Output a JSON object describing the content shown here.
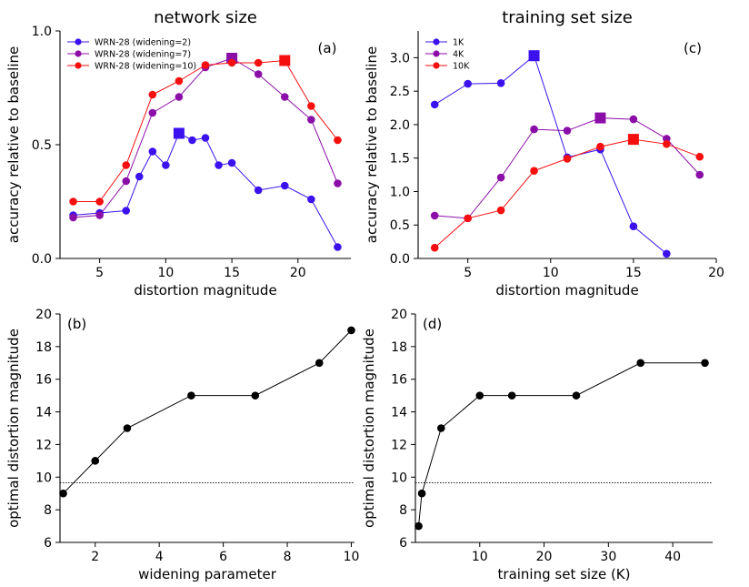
{
  "chart_data": [
    {
      "id": "a",
      "type": "line",
      "title": "network size",
      "panel_label": "(a)",
      "xlabel": "distortion magnitude",
      "ylabel": "accuracy relative to baseline",
      "xlim": [
        2,
        24
      ],
      "ylim": [
        0,
        1.0
      ],
      "xticks": [
        5,
        10,
        15,
        20
      ],
      "yticks": [
        0.0,
        0.5,
        1.0
      ],
      "ytick_labels": [
        "0.0",
        "0.5",
        "1.0"
      ],
      "legend_position": "top-left",
      "series": [
        {
          "name": "WRN-28 (widening=2)",
          "color": "#3b12ee",
          "x": [
            3,
            5,
            7,
            8,
            9,
            10,
            11,
            12,
            13,
            14,
            15,
            17,
            19,
            21,
            23
          ],
          "y": [
            0.19,
            0.2,
            0.21,
            0.36,
            0.47,
            0.41,
            0.55,
            0.52,
            0.53,
            0.41,
            0.42,
            0.3,
            0.32,
            0.26,
            0.05
          ],
          "peak_x": 11
        },
        {
          "name": "WRN-28 (widening=7)",
          "color": "#8c0ea8",
          "x": [
            3,
            5,
            7,
            9,
            11,
            13,
            15,
            17,
            19,
            21,
            23
          ],
          "y": [
            0.18,
            0.19,
            0.34,
            0.64,
            0.71,
            0.84,
            0.88,
            0.81,
            0.71,
            0.61,
            0.33
          ],
          "peak_x": 15
        },
        {
          "name": "WRN-28 (widening=10)",
          "color": "#f50f0f",
          "x": [
            3,
            5,
            7,
            9,
            11,
            13,
            15,
            17,
            19,
            21,
            23
          ],
          "y": [
            0.25,
            0.25,
            0.41,
            0.72,
            0.78,
            0.85,
            0.86,
            0.86,
            0.87,
            0.67,
            0.52
          ],
          "peak_x": 19
        }
      ]
    },
    {
      "id": "b",
      "type": "line",
      "panel_label": "(b)",
      "xlabel": "widening parameter",
      "ylabel": "optimal distortion magnitude",
      "xlim": [
        0.9,
        10.1
      ],
      "ylim": [
        6,
        20
      ],
      "xticks": [
        2,
        4,
        6,
        8,
        10
      ],
      "yticks": [
        6,
        8,
        10,
        12,
        14,
        16,
        18,
        20
      ],
      "hline": 9.65,
      "series": [
        {
          "color": "#000000",
          "x": [
            1,
            2,
            3,
            5,
            7,
            9,
            10
          ],
          "y": [
            9,
            11,
            13,
            15,
            15,
            17,
            19
          ]
        }
      ]
    },
    {
      "id": "c",
      "type": "line",
      "title": "training set size",
      "panel_label": "(c)",
      "xlabel": "distortion magnitude",
      "ylabel": "accuracy relative to baseline",
      "xlim": [
        2,
        20
      ],
      "ylim": [
        0,
        3.4
      ],
      "xticks": [
        5,
        10,
        15,
        20
      ],
      "yticks": [
        0.0,
        0.5,
        1.0,
        1.5,
        2.0,
        2.5,
        3.0
      ],
      "ytick_labels": [
        "0.0",
        "0.5",
        "1.0",
        "1.5",
        "2.0",
        "2.5",
        "3.0"
      ],
      "legend_position": "top-left",
      "series": [
        {
          "name": "1K",
          "color": "#3b12ee",
          "x": [
            3,
            5,
            7,
            9,
            11,
            13,
            15,
            17
          ],
          "y": [
            2.3,
            2.61,
            2.62,
            3.03,
            1.51,
            1.63,
            0.48,
            0.07
          ],
          "peak_x": 9
        },
        {
          "name": "4K",
          "color": "#8c0ea8",
          "x": [
            3,
            5,
            7,
            9,
            11,
            13,
            15,
            17,
            19
          ],
          "y": [
            0.64,
            0.6,
            1.21,
            1.93,
            1.91,
            2.1,
            2.08,
            1.79,
            1.25
          ],
          "peak_x": 13
        },
        {
          "name": "10K",
          "color": "#f50f0f",
          "x": [
            3,
            5,
            7,
            9,
            11,
            13,
            15,
            17,
            19
          ],
          "y": [
            0.16,
            0.6,
            0.72,
            1.31,
            1.49,
            1.67,
            1.78,
            1.71,
            1.52
          ],
          "peak_x": 15
        }
      ]
    },
    {
      "id": "d",
      "type": "line",
      "panel_label": "(d)",
      "xlabel": "training set size (K)",
      "ylabel": "optimal distortion magnitude",
      "xlim": [
        0,
        46.2
      ],
      "ylim": [
        6,
        20
      ],
      "xticks": [
        10,
        20,
        30,
        40
      ],
      "yticks": [
        6,
        8,
        10,
        12,
        14,
        16,
        18,
        20
      ],
      "hline": 9.65,
      "series": [
        {
          "color": "#000000",
          "x": [
            0.5,
            1,
            4,
            10,
            15,
            25,
            35,
            45
          ],
          "y": [
            7,
            9,
            13,
            15,
            15,
            15,
            17,
            17
          ]
        }
      ]
    }
  ]
}
